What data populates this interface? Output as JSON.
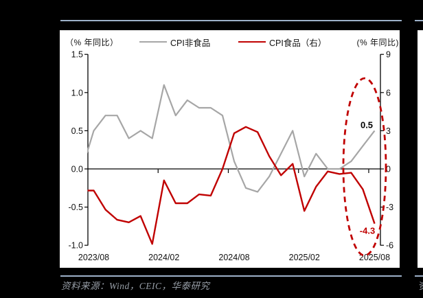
{
  "figure": {
    "source_note": "资料来源：Wind，CEIC，华泰研究",
    "divider_color": "#9db1c9",
    "adjacent_column_fragment": "资"
  },
  "chart_data": {
    "type": "line",
    "title": "",
    "left_axis": {
      "title": "（% 年同比）",
      "ticks": [
        1.5,
        1.0,
        0.5,
        0.0,
        -0.5,
        -1.0
      ],
      "tick_labels": [
        "1.5",
        "1.0",
        "0.5",
        "0.0",
        "-0.5",
        "-1.0"
      ],
      "range": [
        -1.0,
        1.5
      ]
    },
    "right_axis": {
      "title": "(% 年同比)",
      "ticks": [
        9,
        6,
        3,
        0,
        -3,
        -6
      ],
      "tick_labels": [
        "9",
        "6",
        "3",
        "0",
        "-3",
        "-6"
      ],
      "range": [
        -6,
        9
      ]
    },
    "x_axis": {
      "tick_labels": [
        "2023/08",
        "2024/02",
        "2024/08",
        "2025/02",
        "2025/08"
      ],
      "x": [
        "2023/08",
        "2023/09",
        "2023/10",
        "2023/11",
        "2023/12",
        "2024/01",
        "2024/02",
        "2024/03",
        "2024/04",
        "2024/05",
        "2024/06",
        "2024/07",
        "2024/08",
        "2024/09",
        "2024/10",
        "2024/11",
        "2024/12",
        "2025/01",
        "2025/02",
        "2025/03",
        "2025/04",
        "2025/05",
        "2025/06",
        "2025/07",
        "2025/08"
      ],
      "lead_in_x": "2023/07"
    },
    "grid": "off",
    "legend_position": "top",
    "series": [
      {
        "name": "CPI非食品",
        "axis": "left",
        "color": "#a6a6a6",
        "lead_in": 0.0,
        "values": [
          0.5,
          0.7,
          0.7,
          0.4,
          0.5,
          0.4,
          1.1,
          0.7,
          0.9,
          0.8,
          0.8,
          0.7,
          0.1,
          -0.25,
          -0.3,
          -0.1,
          0.2,
          0.5,
          -0.1,
          0.2,
          0.0,
          0.0,
          0.1,
          0.3,
          0.5
        ]
      },
      {
        "name": "CPI食品（右）",
        "axis": "right",
        "color": "#c00000",
        "lead_in": -1.7,
        "values": [
          -1.7,
          -3.2,
          -4.0,
          -4.2,
          -3.7,
          -5.9,
          -0.9,
          -2.7,
          -2.7,
          -2.0,
          -2.1,
          0.0,
          2.8,
          3.3,
          2.9,
          1.0,
          -0.5,
          0.4,
          -3.3,
          -1.4,
          -0.2,
          -0.4,
          -0.3,
          -1.6,
          -4.3
        ]
      }
    ],
    "annotations": [
      {
        "text": "0.5",
        "color": "#000000",
        "refers_to": "CPI非食品 2025/08"
      },
      {
        "text": "-4.3",
        "color": "#c00000",
        "refers_to": "CPI食品 2025/08"
      }
    ],
    "highlight_ellipse": {
      "color": "#c00000",
      "style": "dashed"
    }
  }
}
